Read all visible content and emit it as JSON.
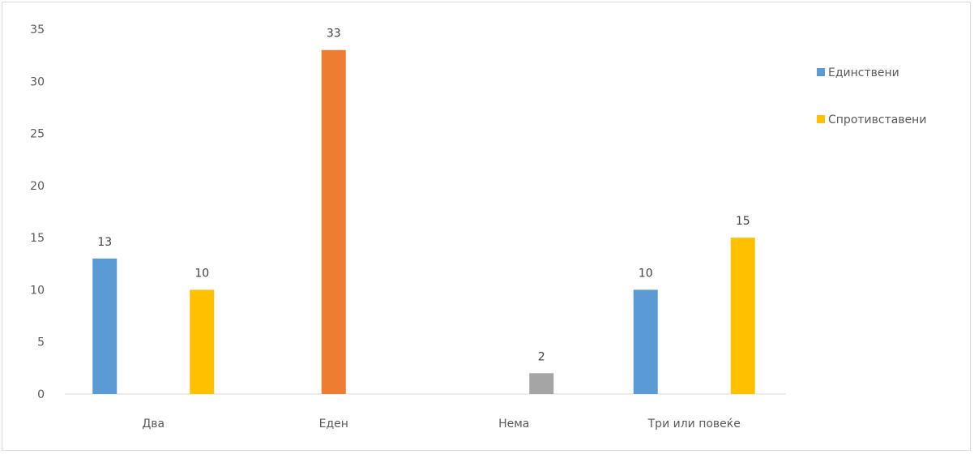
{
  "chart_data": {
    "type": "bar",
    "categories": [
      "Два",
      "Еден",
      "Нема",
      "Три или повеќе"
    ],
    "y_ticks": [
      "0",
      "5",
      "10",
      "15",
      "20",
      "25",
      "30",
      "35"
    ],
    "ylim": [
      0,
      35
    ],
    "grid": false,
    "legend_placement": "right",
    "bars": [
      {
        "category": "Два",
        "value": 13,
        "label": "13",
        "color": "#5b9bd5"
      },
      {
        "category": "Два",
        "value": 10,
        "label": "10",
        "color": "#ffc000"
      },
      {
        "category": "Еден",
        "value": 33,
        "label": "33",
        "color": "#ed7d31"
      },
      {
        "category": "Нема",
        "value": 2,
        "label": "2",
        "color": "#a5a5a5"
      },
      {
        "category": "Три или повеќе",
        "value": 10,
        "label": "10",
        "color": "#5b9bd5"
      },
      {
        "category": "Три или повеќе",
        "value": 15,
        "label": "15",
        "color": "#ffc000"
      }
    ],
    "legend": [
      {
        "name": "Единствени",
        "color": "#5b9bd5"
      },
      {
        "name": "Спротивставени",
        "color": "#ffc000"
      }
    ]
  }
}
